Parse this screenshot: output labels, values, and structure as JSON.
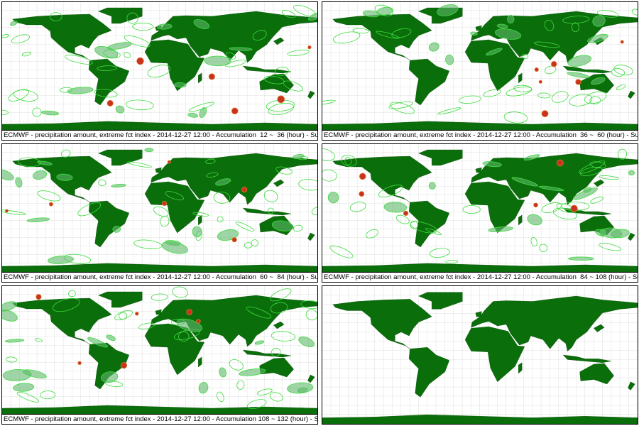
{
  "panels": [
    {
      "caption": "ECMWF - precipitation amount, extreme fct index - 2014-12-27 12:00 - Accumulation  12 ~  36 (hour) - Surfac"
    },
    {
      "caption": "ECMWF - precipitation amount, extreme fct index - 2014-12-27 12:00 - Accumulation  36 ~  60 (hour) - Surfac"
    },
    {
      "caption": "ECMWF - precipitation amount, extreme fct index - 2014-12-27 12:00 - Accumulation  60 ~  84 (hour) - Surfac"
    },
    {
      "caption": "ECMWF - precipitation amount, extreme fct index - 2014-12-27 12:00 - Accumulation  84 ~ 108 (hour) - Surfac"
    },
    {
      "caption": "ECMWF - precipitation amount, extreme fct index - 2014-12-27 12:00 - Accumulation 108 ~ 132 (hour) - Surfac"
    }
  ]
}
